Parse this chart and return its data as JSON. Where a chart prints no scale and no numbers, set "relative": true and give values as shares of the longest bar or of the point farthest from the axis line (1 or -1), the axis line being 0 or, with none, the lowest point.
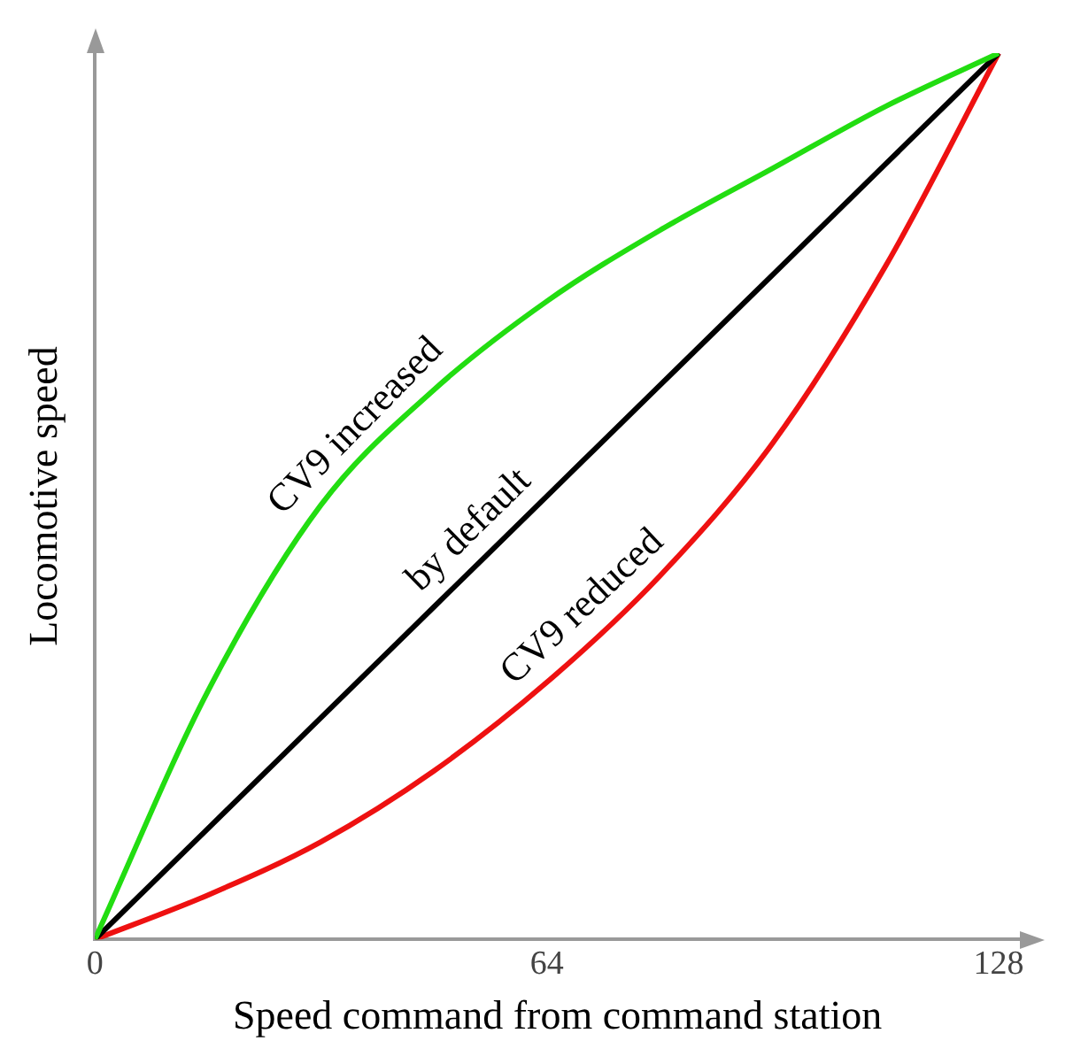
{
  "chart_data": {
    "type": "line",
    "relative": true,
    "xlabel": "Speed command from command station",
    "ylabel": "Locomotive speed",
    "x": [
      0,
      16,
      32,
      48,
      64,
      80,
      96,
      112,
      128
    ],
    "xlim": [
      0,
      131
    ],
    "xticks": [
      0,
      64,
      128
    ],
    "grid": false,
    "legend": false,
    "marker": "none",
    "line_style": "solid",
    "series": [
      {
        "name": "CV9 increased",
        "color": "#22dd11",
        "values": [
          0,
          0.28,
          0.49,
          0.62,
          0.72,
          0.8,
          0.87,
          0.94,
          1
        ]
      },
      {
        "name": "by default",
        "color": "#000000",
        "values": [
          0,
          0.125,
          0.25,
          0.375,
          0.5,
          0.625,
          0.75,
          0.875,
          1
        ]
      },
      {
        "name": "CV9 reduced",
        "color": "#ee1111",
        "values": [
          0,
          0.05,
          0.11,
          0.19,
          0.29,
          0.41,
          0.56,
          0.76,
          1
        ]
      }
    ]
  }
}
